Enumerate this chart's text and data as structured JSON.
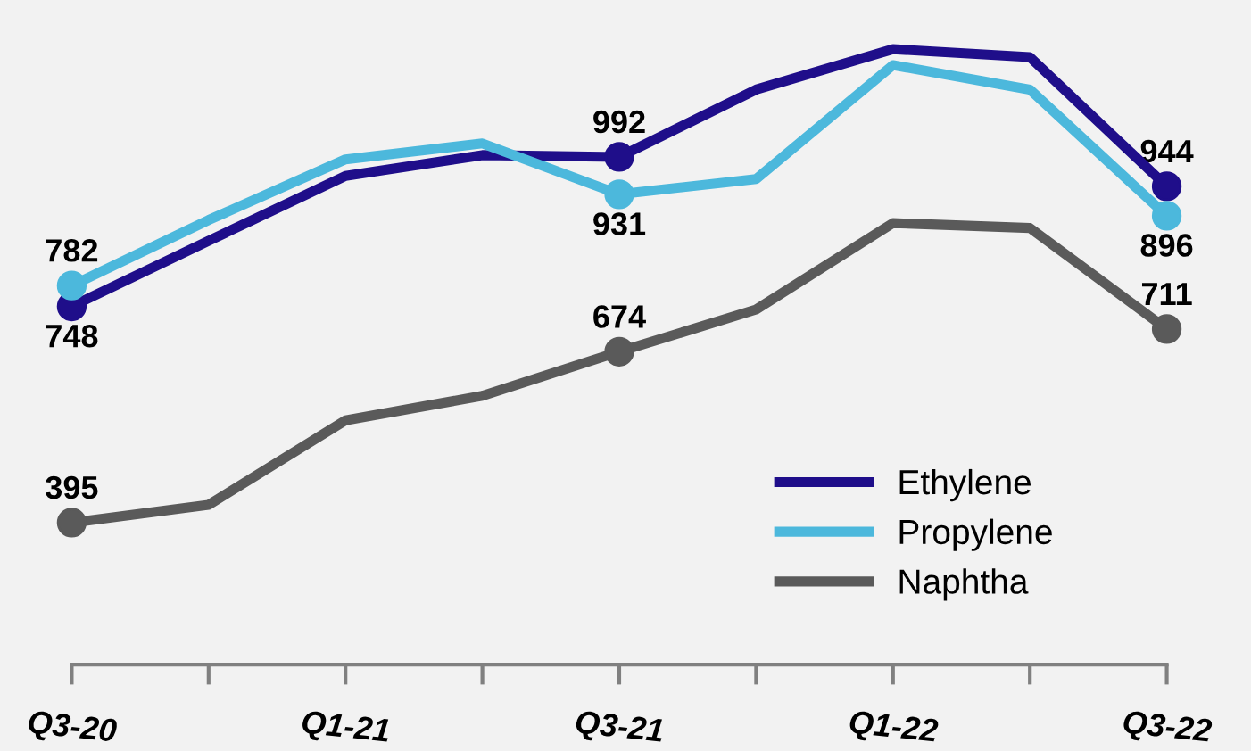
{
  "chart_data": {
    "type": "line",
    "categories": [
      "Q3-20",
      null,
      "Q1-21",
      null,
      "Q3-21",
      null,
      "Q1-22",
      null,
      "Q3-22"
    ],
    "series": [
      {
        "name": "Ethylene",
        "color": "#1f0e8a",
        "values": [
          748,
          855,
          961,
          995,
          992,
          1102,
          1168,
          1155,
          944
        ],
        "value_labels": [
          "748",
          null,
          null,
          null,
          "992",
          null,
          null,
          null,
          "944"
        ]
      },
      {
        "name": "Propylene",
        "color": "#4cb8dc",
        "values": [
          782,
          889,
          988,
          1014,
          931,
          956,
          1142,
          1102,
          896
        ],
        "value_labels": [
          "782",
          null,
          null,
          null,
          "931",
          null,
          null,
          null,
          "896"
        ]
      },
      {
        "name": "Naphtha",
        "color": "#5a5a5a",
        "values": [
          395,
          424,
          562,
          602,
          674,
          743,
          884,
          876,
          711
        ],
        "value_labels": [
          "395",
          null,
          null,
          null,
          "674",
          null,
          null,
          null,
          "711"
        ]
      }
    ],
    "line_style": "solid",
    "legend": "bottom right",
    "grid": false,
    "tick_labels": "x"
  }
}
